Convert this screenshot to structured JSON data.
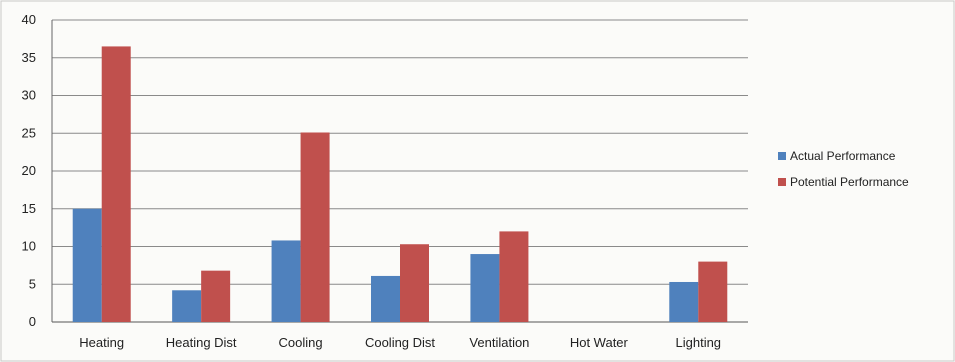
{
  "chart_data": {
    "type": "bar",
    "categories": [
      "Heating",
      "Heating Dist",
      "Cooling",
      "Cooling Dist",
      "Ventilation",
      "Hot Water",
      "Lighting"
    ],
    "series": [
      {
        "name": "Actual Performance",
        "color": "#4f81bd",
        "values": [
          15,
          4.2,
          10.8,
          6.1,
          9,
          0,
          5.3
        ]
      },
      {
        "name": "Potential Performance",
        "color": "#c0504d",
        "values": [
          36.5,
          6.8,
          25.1,
          10.3,
          12,
          0,
          8
        ]
      }
    ],
    "ylim": [
      0,
      40
    ],
    "yticks": [
      "0",
      "5",
      "10",
      "15",
      "20",
      "25",
      "30",
      "35",
      "40"
    ],
    "grid": true,
    "legend_position": "right"
  }
}
